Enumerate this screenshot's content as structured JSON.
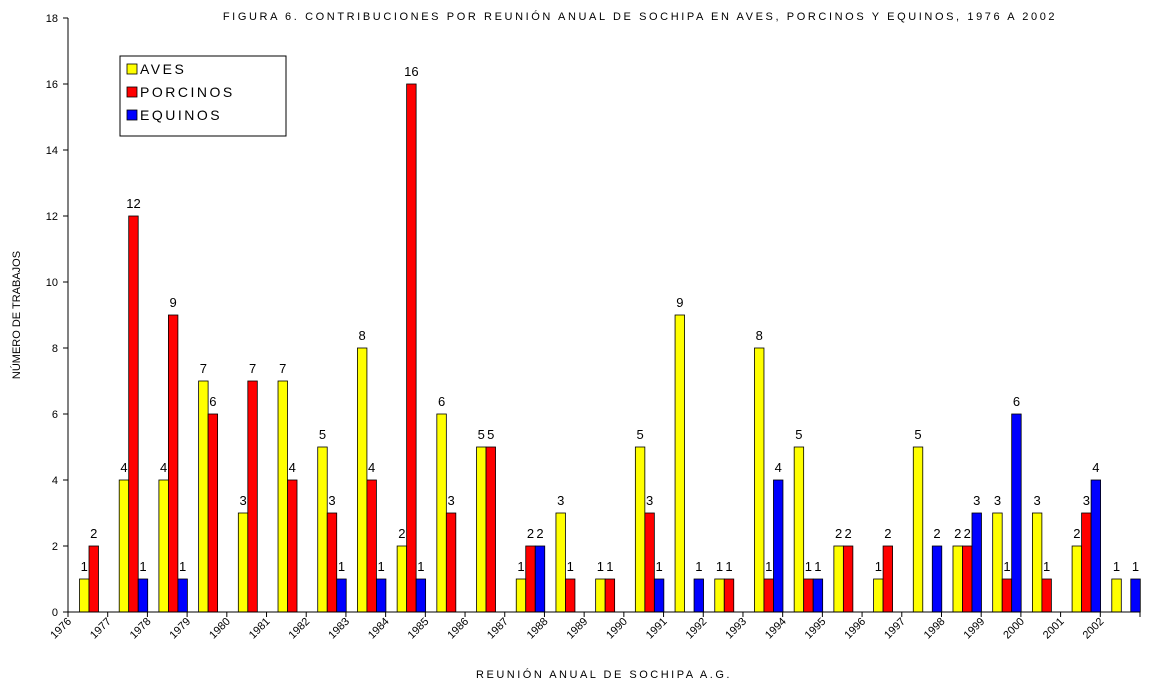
{
  "chart_data": {
    "type": "bar",
    "title": "FIGURA 6. CONTRIBUCIONES POR REUNIÓN ANUAL DE SOCHIPA EN AVES, PORCINOS Y EQUINOS, 1976 A 2002",
    "x_label": "REUNIÓN ANUAL DE SOCHIPA A.G.",
    "y_label": "NÚMERO DE TRABAJOS",
    "categories": [
      "1976",
      "1977",
      "1978",
      "1979",
      "1980",
      "1981",
      "1982",
      "1983",
      "1984",
      "1985",
      "1986",
      "1987",
      "1988",
      "1989",
      "1990",
      "1991",
      "1992",
      "1993",
      "1994",
      "1995",
      "1996",
      "1997",
      "1998",
      "1999",
      "2000",
      "2001",
      "2002"
    ],
    "series": [
      {
        "name": "AVES",
        "color": "#ffff00",
        "values": [
          1,
          4,
          4,
          7,
          3,
          7,
          5,
          8,
          2,
          6,
          5,
          1,
          3,
          1,
          5,
          9,
          1,
          8,
          5,
          2,
          1,
          5,
          2,
          3,
          3,
          2,
          1
        ]
      },
      {
        "name": "PORCINOS",
        "color": "#ff0000",
        "values": [
          2,
          12,
          9,
          6,
          7,
          4,
          3,
          4,
          16,
          3,
          5,
          2,
          1,
          1,
          3,
          null,
          1,
          1,
          1,
          2,
          2,
          null,
          2,
          1,
          1,
          3,
          null
        ]
      },
      {
        "name": "EQUINOS",
        "color": "#0000ff",
        "values": [
          null,
          1,
          1,
          null,
          null,
          null,
          1,
          1,
          1,
          null,
          null,
          2,
          null,
          null,
          1,
          1,
          null,
          4,
          1,
          null,
          null,
          2,
          3,
          6,
          null,
          4,
          1
        ]
      }
    ],
    "ylim": [
      0,
      18
    ],
    "yticks": [
      0,
      2,
      4,
      6,
      8,
      10,
      12,
      14,
      16,
      18
    ],
    "grid": false,
    "legend": "top-left"
  }
}
